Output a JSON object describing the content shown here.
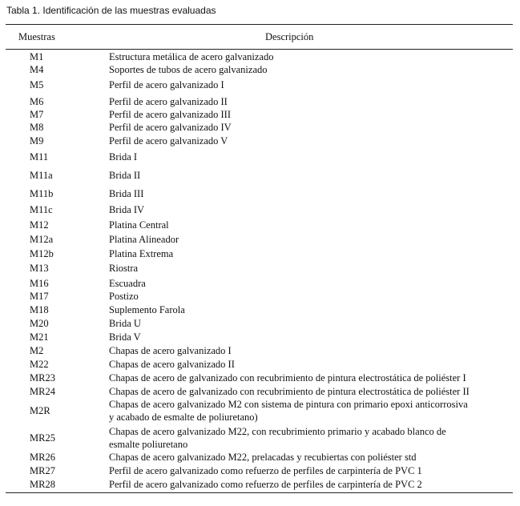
{
  "caption": "Tabla 1. Identificación de las muestras evaluadas",
  "headers": {
    "code": "Muestras",
    "description": "Descripción"
  },
  "rows": [
    {
      "code": "M1",
      "description": [
        "Estructura metálica de acero galvanizado"
      ]
    },
    {
      "code": "M4",
      "description": [
        "Soportes de tubos de acero galvanizado"
      ]
    },
    {
      "code": "M5",
      "description": [
        "Perfil de acero galvanizado I"
      ]
    },
    {
      "code": "M6",
      "description": [
        "Perfil de acero galvanizado II"
      ]
    },
    {
      "code": "M7",
      "description": [
        "Perfil de acero galvanizado III"
      ]
    },
    {
      "code": "M8",
      "description": [
        "Perfil de acero galvanizado IV"
      ]
    },
    {
      "code": "M9",
      "description": [
        "Perfil de acero galvanizado V"
      ]
    },
    {
      "code": "M11",
      "description": [
        "Brida I"
      ]
    },
    {
      "code": "M11a",
      "description": [
        "Brida II"
      ]
    },
    {
      "code": "M11b",
      "description": [
        "Brida III"
      ]
    },
    {
      "code": "M11c",
      "description": [
        "Brida IV"
      ]
    },
    {
      "code": "M12",
      "description": [
        "Platina Central"
      ]
    },
    {
      "code": "M12a",
      "description": [
        "Platina Alineador"
      ]
    },
    {
      "code": "M12b",
      "description": [
        "Platina Extrema"
      ]
    },
    {
      "code": "M13",
      "description": [
        "Riostra"
      ]
    },
    {
      "code": "M16",
      "description": [
        "Escuadra"
      ]
    },
    {
      "code": "M17",
      "description": [
        "Postizo"
      ]
    },
    {
      "code": "M18",
      "description": [
        "Suplemento Farola"
      ]
    },
    {
      "code": "M20",
      "description": [
        "Brida U"
      ]
    },
    {
      "code": "M21",
      "description": [
        "Brida V"
      ]
    },
    {
      "code": "M2",
      "description": [
        "Chapas de acero galvanizado I"
      ]
    },
    {
      "code": "M22",
      "description": [
        "Chapas de acero galvanizado II"
      ]
    },
    {
      "code": "MR23",
      "description": [
        "Chapas de acero de galvanizado con recubrimiento de pintura electrostática de poliéster I"
      ]
    },
    {
      "code": "MR24",
      "description": [
        "Chapas de acero de galvanizado con recubrimiento de pintura electrostática de poliéster II"
      ]
    },
    {
      "code": "M2R",
      "description": [
        "Chapas de acero galvanizado M2 con sistema de pintura con primario epoxi anticorrosiva",
        "y acabado de esmalte de poliuretano)"
      ]
    },
    {
      "code": "MR25",
      "description": [
        "Chapas de  acero galvanizado M22, con recubrimiento primario y acabado blanco de",
        "esmalte poliuretano"
      ]
    },
    {
      "code": "MR26",
      "description": [
        "Chapas de  acero galvanizado M22, prelacadas y recubiertas con poliéster std"
      ]
    },
    {
      "code": "MR27",
      "description": [
        "Perfil de acero galvanizado como refuerzo de perfiles de carpintería de PVC 1"
      ]
    },
    {
      "code": "MR28",
      "description": [
        "Perfil de acero galvanizado como refuerzo de perfiles de carpintería de PVC 2"
      ]
    }
  ]
}
